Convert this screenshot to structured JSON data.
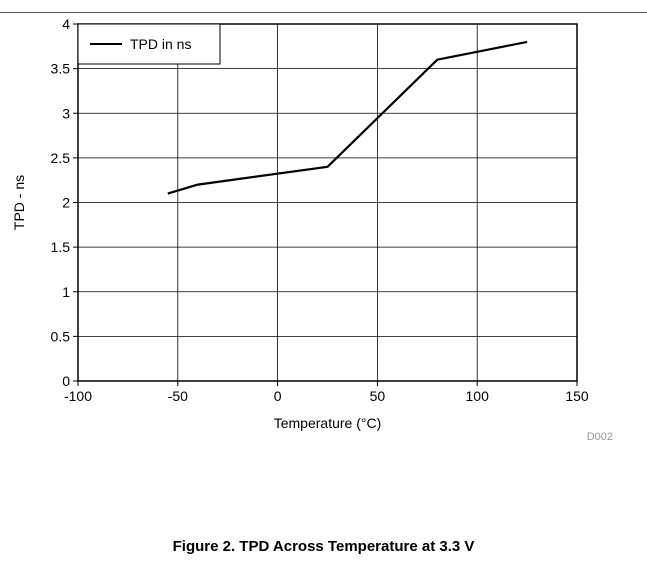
{
  "caption": "Figure 2. TPD Across Temperature at 3.3 V",
  "figure_code": "D002",
  "chart_data": {
    "type": "line",
    "title": "",
    "xlabel": "Temperature (°C)",
    "ylabel": "TPD - ns",
    "xlim": [
      -100,
      150
    ],
    "ylim": [
      0,
      4
    ],
    "x_ticks": [
      -100,
      -50,
      0,
      50,
      100,
      150
    ],
    "x_tick_labels": [
      "-100",
      "-50",
      "0",
      "50",
      "100",
      "150"
    ],
    "y_ticks": [
      0,
      0.5,
      1,
      1.5,
      2,
      2.5,
      3,
      3.5,
      4
    ],
    "y_tick_labels": [
      "0",
      "0.5",
      "1",
      "1.5",
      "2",
      "2.5",
      "3",
      "3.5",
      "4"
    ],
    "grid": true,
    "legend_position": "top-left",
    "series": [
      {
        "name": "TPD in ns",
        "color": "#000000",
        "x": [
          -55,
          -40,
          25,
          80,
          125
        ],
        "y": [
          2.1,
          2.2,
          2.4,
          3.6,
          3.8
        ]
      }
    ]
  }
}
